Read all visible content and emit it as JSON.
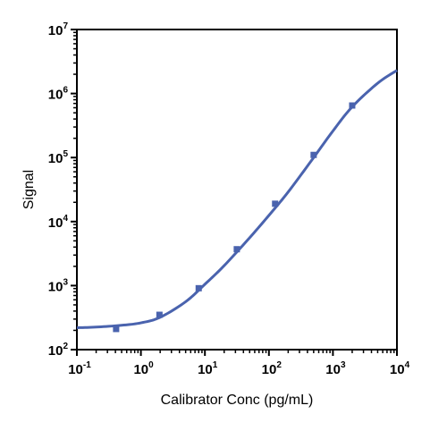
{
  "chart_data": {
    "type": "scatter",
    "xlabel": "Calibrator Conc (pg/mL)",
    "ylabel": "Signal",
    "x_scale": "log",
    "y_scale": "log",
    "xlim": [
      0.1,
      10000
    ],
    "ylim": [
      100,
      10000000
    ],
    "grid": false,
    "x_ticks": [
      {
        "value": 0.1,
        "base": "10",
        "exp": "-1"
      },
      {
        "value": 1,
        "base": "10",
        "exp": "0"
      },
      {
        "value": 10,
        "base": "10",
        "exp": "1"
      },
      {
        "value": 100,
        "base": "10",
        "exp": "2"
      },
      {
        "value": 1000,
        "base": "10",
        "exp": "3"
      },
      {
        "value": 10000,
        "base": "10",
        "exp": "4"
      }
    ],
    "y_ticks": [
      {
        "value": 100,
        "base": "10",
        "exp": "2"
      },
      {
        "value": 1000,
        "base": "10",
        "exp": "3"
      },
      {
        "value": 10000,
        "base": "10",
        "exp": "4"
      },
      {
        "value": 100000,
        "base": "10",
        "exp": "5"
      },
      {
        "value": 1000000,
        "base": "10",
        "exp": "6"
      },
      {
        "value": 10000000,
        "base": "10",
        "exp": "7"
      }
    ],
    "series": [
      {
        "kind": "points",
        "x": [
          0.41,
          1.95,
          8.0,
          31.5,
          125,
          500,
          2000
        ],
        "y": [
          210,
          350,
          910,
          3700,
          19000,
          110000,
          650000
        ]
      },
      {
        "kind": "fit_curve",
        "x": [
          0.1,
          0.2,
          0.5,
          1,
          2,
          5,
          10,
          20,
          50,
          100,
          200,
          500,
          1000,
          2000,
          5000,
          10000
        ],
        "y": [
          220,
          225,
          240,
          262,
          320,
          560,
          1050,
          2050,
          5600,
          12500,
          29000,
          100000,
          260000,
          620000,
          1450000,
          2300000
        ]
      }
    ],
    "colors": {
      "series": "#4a63ae",
      "axis": "#000000"
    }
  }
}
